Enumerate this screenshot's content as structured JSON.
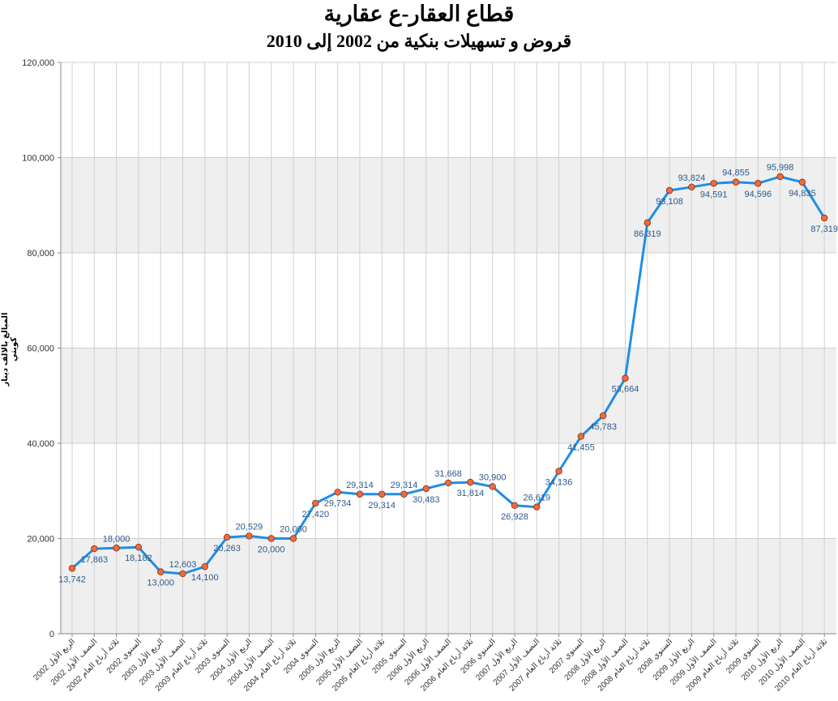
{
  "chart_data": {
    "type": "line",
    "title": "قطاع العقار-ع عقارية",
    "subtitle": "قروض و تسهيلات بنكية من 2002 إلى 2010",
    "ylabel": "المبالغ بالالف دينار كويتي",
    "xlabel": "",
    "ylim": [
      0,
      120000
    ],
    "yticks": [
      "0",
      "20,000",
      "40,000",
      "60,000",
      "80,000",
      "100,000",
      "120,000"
    ],
    "grid": true,
    "line_color": "#1f8ee6",
    "marker_color": "#f06a3c",
    "categories": [
      "الربع الأول 2002",
      "النصف الأول 2002",
      "ثلاثة أرباع العام 2002",
      "السنوي 2002",
      "الربع الأول 2003",
      "النصف الأول 2003",
      "ثلاثة أرباع العام 2003",
      "السنوي 2003",
      "الربع الأول 2004",
      "النصف الأول 2004",
      "ثلاثة أرباع العام 2004",
      "السنوي 2004",
      "الربع الأول 2005",
      "النصف الأول 2005",
      "ثلاثة أرباع العام 2005",
      "السنوي 2005",
      "الربع الأول 2006",
      "النصف الأول 2006",
      "ثلاثة أرباع العام 2006",
      "السنوي 2006",
      "الربع الأول 2007",
      "النصف الأول 2007",
      "ثلاثة أرباع العام 2007",
      "السنوي 2007",
      "الربع الأول 2008",
      "النصف الأول 2008",
      "ثلاثة أرباع العام 2008",
      "السنوي 2008",
      "الربع الأول 2009",
      "النصف الأول 2009",
      "ثلاثة أرباع العام 2009",
      "السنوي 2009",
      "الربع الأول 2010",
      "النصف الأول 2010",
      "ثلاثة أرباع العام 2010"
    ],
    "values": [
      13742,
      17863,
      18000,
      18182,
      13000,
      12603,
      14100,
      20263,
      20529,
      20000,
      20000,
      27420,
      29734,
      29314,
      29314,
      29314,
      30483,
      31668,
      31814,
      30900,
      26928,
      26619,
      34136,
      41455,
      45783,
      53664,
      86319,
      93108,
      93824,
      94591,
      94855,
      94596,
      95998,
      94835,
      87319
    ],
    "labels": [
      "13,742",
      "17,863",
      "18,000",
      "18,182",
      "13,000",
      "12,603",
      "14,100",
      "20,263",
      "20,529",
      "20,000",
      "20,000",
      "27,420",
      "29,734",
      "29,314",
      "29,314",
      "29,314",
      "30,483",
      "31,668",
      "31,814",
      "30,900",
      "26,928",
      "26,619",
      "34,136",
      "41,455",
      "45,783",
      "53,664",
      "86,319",
      "93,108",
      "93,824",
      "94,591",
      "94,855",
      "94,596",
      "95,998",
      "94,835",
      "87,319"
    ],
    "label_position": [
      "below",
      "below",
      "above",
      "below",
      "below",
      "above",
      "below",
      "below",
      "above",
      "below",
      "above",
      "below",
      "below",
      "above",
      "below",
      "above",
      "below",
      "above",
      "below",
      "above",
      "below",
      "above",
      "below",
      "below",
      "below",
      "below",
      "below",
      "below",
      "above",
      "below",
      "above",
      "below",
      "above",
      "below",
      "below"
    ]
  }
}
